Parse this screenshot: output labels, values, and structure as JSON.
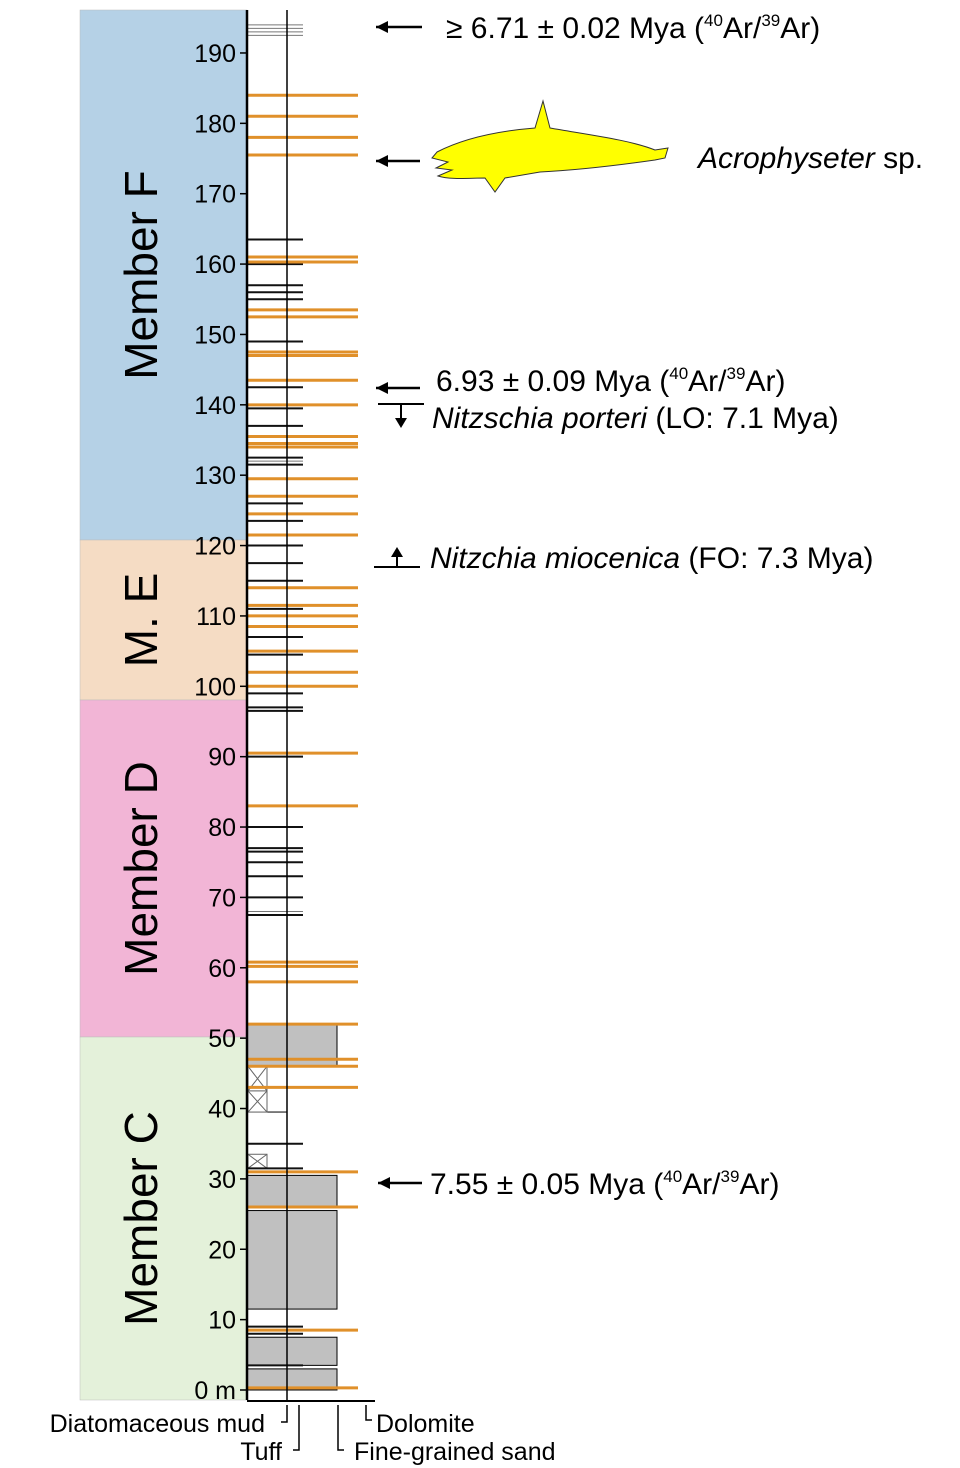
{
  "members": [
    {
      "label": "Member F"
    },
    {
      "label": "M. E"
    },
    {
      "label": "Member D"
    },
    {
      "label": "Member C"
    }
  ],
  "axis": {
    "ticks": [
      "0 m",
      "10",
      "20",
      "30",
      "40",
      "50",
      "60",
      "70",
      "80",
      "90",
      "100",
      "110",
      "120",
      "130",
      "140",
      "150",
      "160",
      "170",
      "180",
      "190"
    ]
  },
  "dates": [
    {
      "prefix": "≥ 6.71 ± 0.02  Mya (",
      "sup1": "40",
      "mid": "Ar/",
      "sup2": "39",
      "suffix": "Ar)"
    },
    {
      "prefix": "6.93 ± 0.09 Mya (",
      "sup1": "40",
      "mid": "Ar/",
      "sup2": "39",
      "suffix": "Ar)"
    },
    {
      "prefix": "7.55 ± 0.05 Mya (",
      "sup1": "40",
      "mid": "Ar/",
      "sup2": "39",
      "suffix": "Ar)"
    }
  ],
  "fossil": {
    "genus": "Acrophyseter",
    "suffix": " sp."
  },
  "biostratigraphy": [
    {
      "taxon": "Nitzschia porteri",
      "note": " (LO: 7.1 Mya)"
    },
    {
      "taxon": "Nitzchia miocenica",
      "note": " (FO: 7.3 Mya)"
    }
  ],
  "legend": {
    "diatomaceous_mud": "Diatomaceous mud",
    "tuff": "Tuff",
    "dolomite": "Dolomite",
    "fine_sand": "Fine-grained sand"
  }
}
